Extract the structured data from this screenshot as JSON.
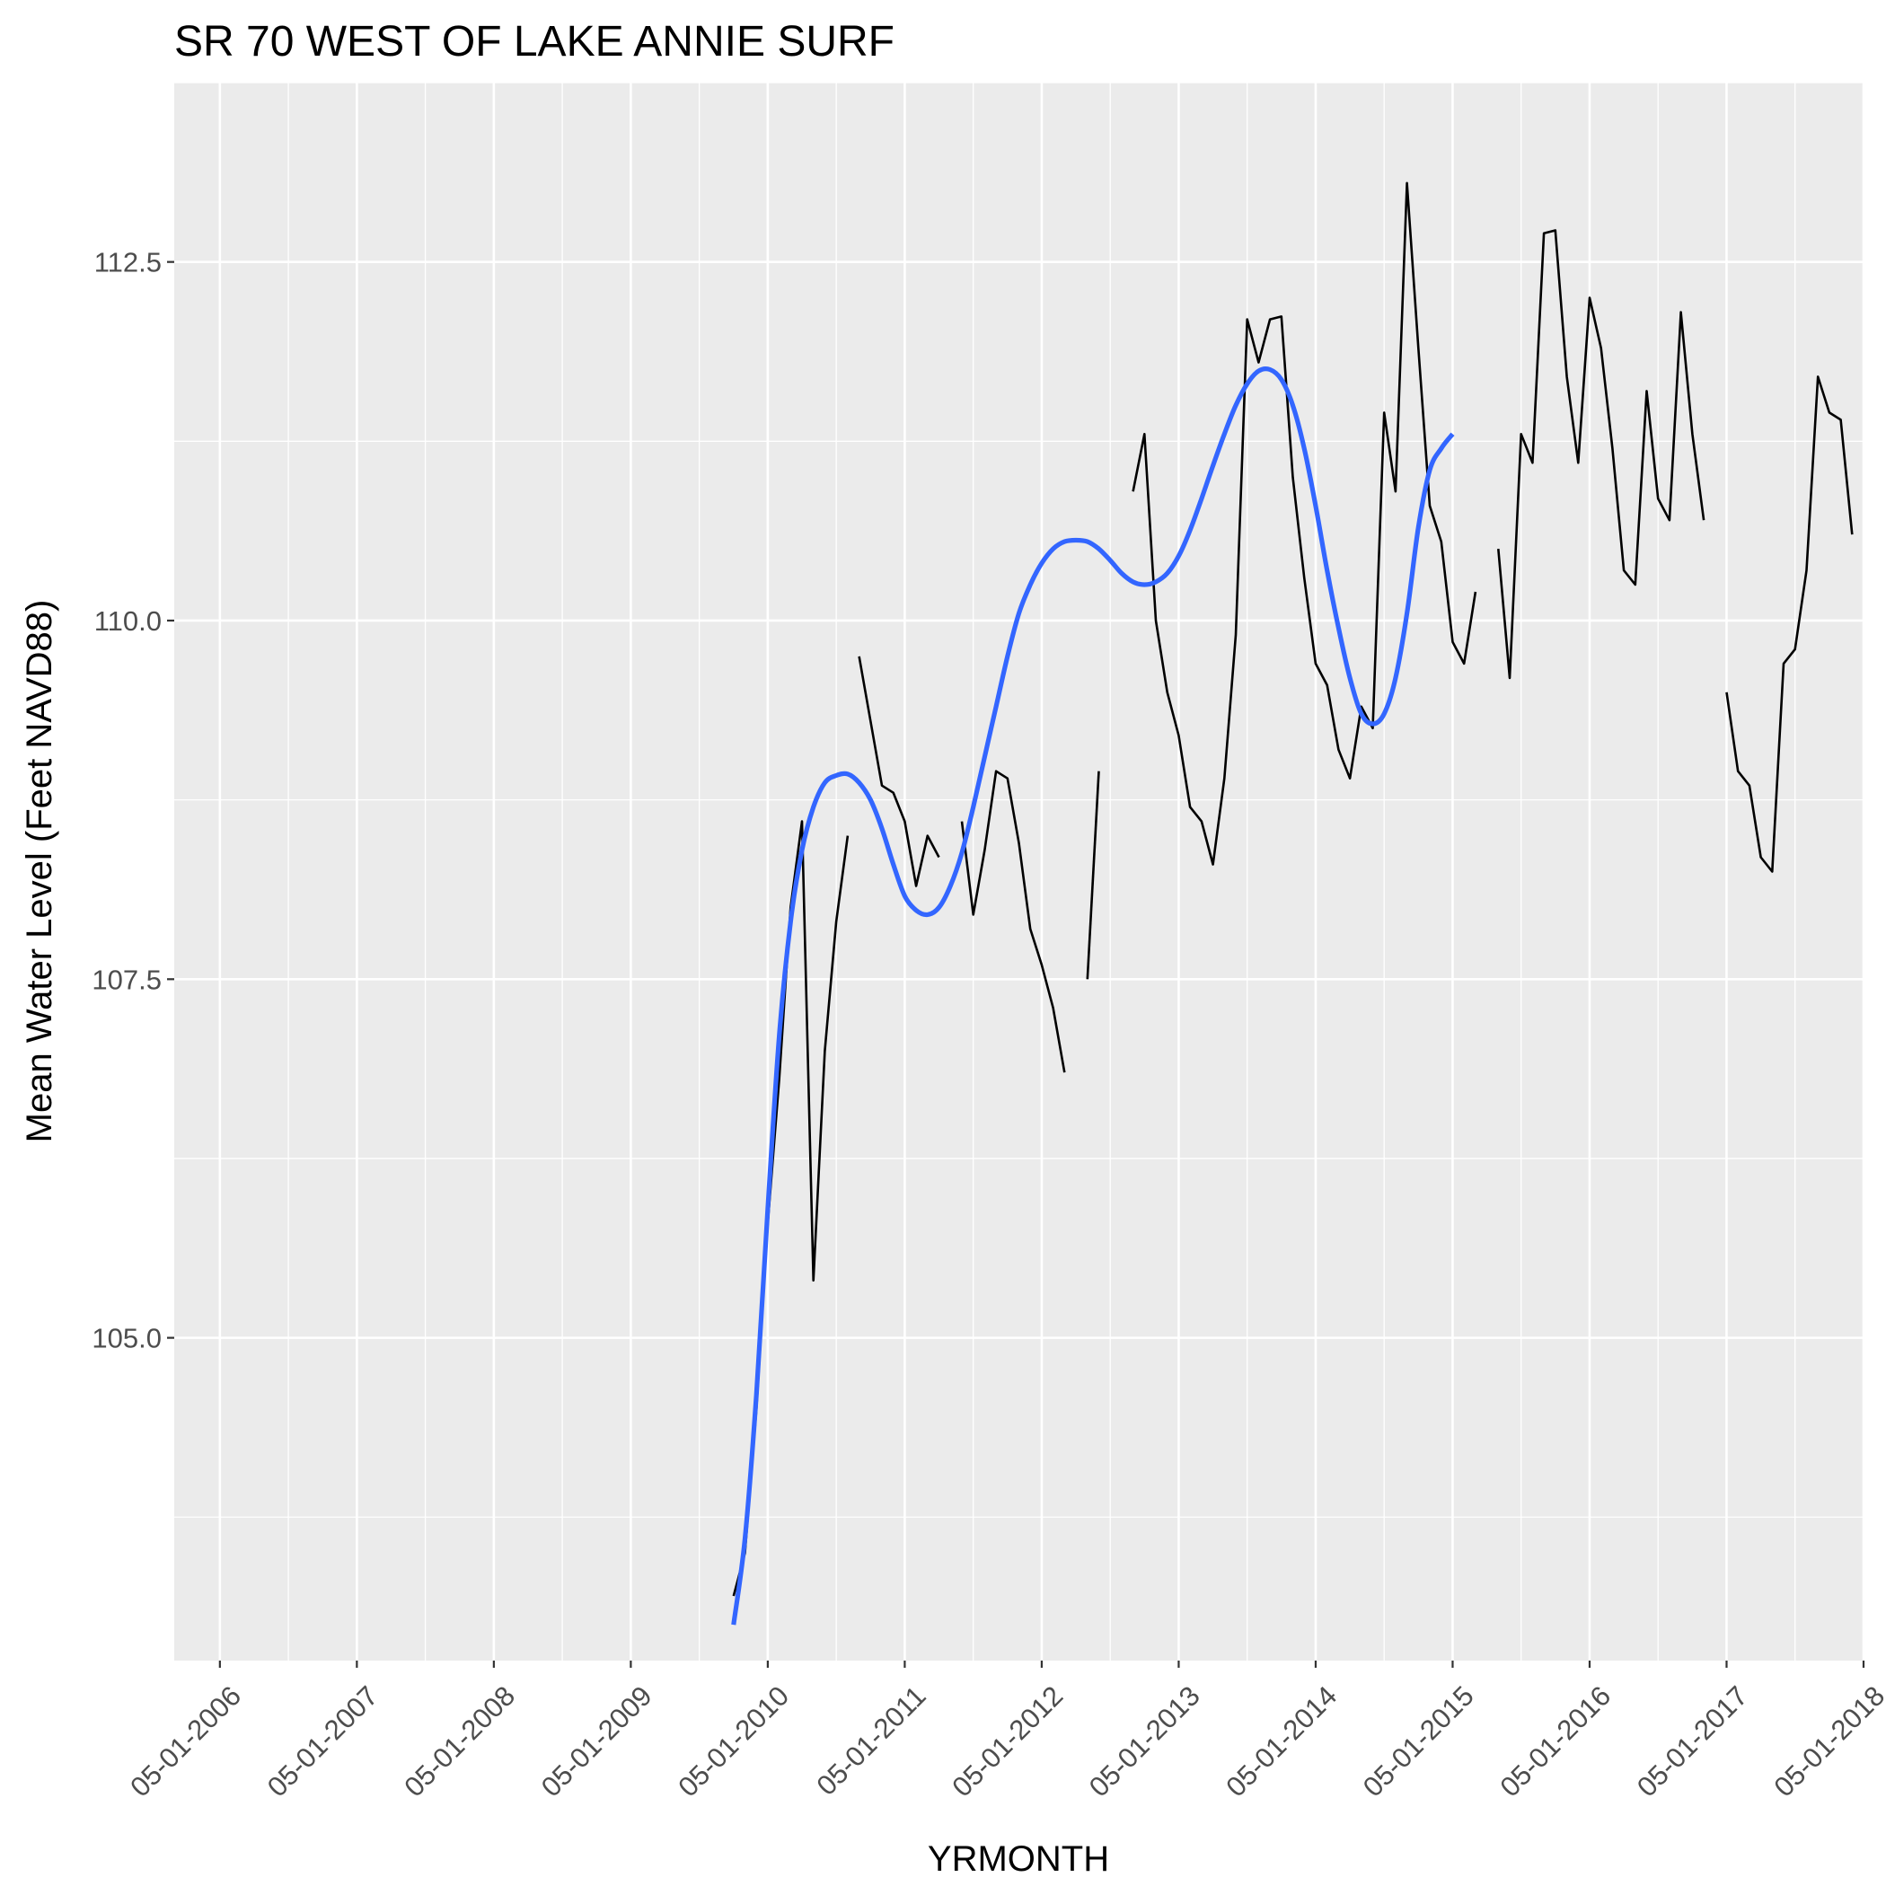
{
  "chart_data": {
    "type": "line",
    "title": "SR 70 WEST OF LAKE ANNIE SURF",
    "xlabel": "YRMONTH",
    "ylabel": "Mean Water Level (Feet NAVD88)",
    "x_tick_labels": [
      "05-01-2006",
      "05-01-2007",
      "05-01-2008",
      "05-01-2009",
      "05-01-2010",
      "05-01-2011",
      "05-01-2012",
      "05-01-2013",
      "05-01-2014",
      "05-01-2015",
      "05-01-2016",
      "05-01-2017",
      "05-01-2018"
    ],
    "y_tick_labels": [
      "105.0",
      "107.5",
      "110.0",
      "112.5"
    ],
    "y_ticks": [
      105.0,
      107.5,
      110.0,
      112.5
    ],
    "xlim": [
      "2006-01",
      "2018-05"
    ],
    "ylim": [
      102.75,
      113.75
    ],
    "grid": true,
    "legend": "none",
    "colors": {
      "panel": "#ebebeb",
      "grid": "#ffffff",
      "observed": "#000000",
      "smooth": "#3366ff",
      "tick_text": "#4d4d4d"
    },
    "series": [
      {
        "style": "observed",
        "segments": [
          [
            [
              "2010-02",
              103.2
            ],
            [
              "2010-03",
              103.5
            ],
            [
              "2010-04",
              104.5
            ],
            [
              "2010-05",
              105.8
            ],
            [
              "2010-06",
              106.8
            ],
            [
              "2010-07",
              108.0
            ],
            [
              "2010-08",
              108.6
            ],
            [
              "2010-09",
              105.4
            ],
            [
              "2010-10",
              107.0
            ],
            [
              "2010-11",
              107.9
            ],
            [
              "2010-12",
              108.5
            ]
          ],
          [
            [
              "2011-01",
              109.75
            ],
            [
              "2011-02",
              109.3
            ],
            [
              "2011-03",
              108.85
            ],
            [
              "2011-04",
              108.8
            ],
            [
              "2011-05",
              108.6
            ],
            [
              "2011-06",
              108.15
            ],
            [
              "2011-07",
              108.5
            ],
            [
              "2011-08",
              108.35
            ]
          ],
          [
            [
              "2011-10",
              108.6
            ],
            [
              "2011-11",
              107.95
            ],
            [
              "2011-12",
              108.4
            ],
            [
              "2012-01",
              108.95
            ],
            [
              "2012-02",
              108.9
            ],
            [
              "2012-03",
              108.45
            ],
            [
              "2012-04",
              107.85
            ],
            [
              "2012-05",
              107.6
            ],
            [
              "2012-06",
              107.3
            ],
            [
              "2012-07",
              106.85
            ]
          ],
          [
            [
              "2012-09",
              107.5
            ],
            [
              "2012-10",
              108.95
            ]
          ],
          [
            [
              "2013-01",
              110.9
            ],
            [
              "2013-02",
              111.3
            ],
            [
              "2013-03",
              110.0
            ],
            [
              "2013-04",
              109.5
            ],
            [
              "2013-05",
              109.2
            ],
            [
              "2013-06",
              108.7
            ],
            [
              "2013-07",
              108.6
            ],
            [
              "2013-08",
              108.3
            ],
            [
              "2013-09",
              108.9
            ],
            [
              "2013-10",
              109.9
            ],
            [
              "2013-11",
              112.1
            ],
            [
              "2013-12",
              111.8
            ],
            [
              "2014-01",
              112.1
            ],
            [
              "2014-02",
              112.12
            ],
            [
              "2014-03",
              111.0
            ],
            [
              "2014-04",
              110.3
            ],
            [
              "2014-05",
              109.7
            ],
            [
              "2014-06",
              109.55
            ],
            [
              "2014-07",
              109.1
            ],
            [
              "2014-08",
              108.9
            ],
            [
              "2014-09",
              109.4
            ],
            [
              "2014-10",
              109.25
            ],
            [
              "2014-11",
              111.45
            ],
            [
              "2014-12",
              110.9
            ],
            [
              "2015-01",
              113.05
            ],
            [
              "2015-02",
              111.9
            ],
            [
              "2015-03",
              110.8
            ],
            [
              "2015-04",
              110.55
            ],
            [
              "2015-05",
              109.85
            ],
            [
              "2015-06",
              109.7
            ],
            [
              "2015-07",
              110.2
            ]
          ],
          [
            [
              "2015-09",
              110.5
            ],
            [
              "2015-10",
              109.6
            ],
            [
              "2015-11",
              111.3
            ],
            [
              "2015-12",
              111.1
            ],
            [
              "2016-01",
              112.7
            ],
            [
              "2016-02",
              112.72
            ],
            [
              "2016-03",
              111.7
            ],
            [
              "2016-04",
              111.1
            ],
            [
              "2016-05",
              112.25
            ],
            [
              "2016-06",
              111.9
            ],
            [
              "2016-07",
              111.2
            ],
            [
              "2016-08",
              110.35
            ],
            [
              "2016-09",
              110.25
            ],
            [
              "2016-10",
              111.6
            ],
            [
              "2016-11",
              110.85
            ],
            [
              "2016-12",
              110.7
            ],
            [
              "2017-01",
              112.15
            ],
            [
              "2017-02",
              111.3
            ],
            [
              "2017-03",
              110.7
            ]
          ],
          [
            [
              "2017-05",
              109.5
            ],
            [
              "2017-06",
              108.95
            ],
            [
              "2017-07",
              108.85
            ],
            [
              "2017-08",
              108.35
            ],
            [
              "2017-09",
              108.25
            ],
            [
              "2017-10",
              109.7
            ],
            [
              "2017-11",
              109.8
            ],
            [
              "2017-12",
              110.35
            ],
            [
              "2018-01",
              111.7
            ],
            [
              "2018-02",
              111.45
            ],
            [
              "2018-03",
              111.4
            ],
            [
              "2018-04",
              110.6
            ]
          ]
        ]
      },
      {
        "style": "smooth",
        "points": [
          [
            "2010-02",
            103.0
          ],
          [
            "2010-03",
            103.6
          ],
          [
            "2010-04",
            104.6
          ],
          [
            "2010-05",
            105.9
          ],
          [
            "2010-06",
            107.1
          ],
          [
            "2010-07",
            107.9
          ],
          [
            "2010-08",
            108.4
          ],
          [
            "2010-09",
            108.7
          ],
          [
            "2010-10",
            108.87
          ],
          [
            "2010-11",
            108.92
          ],
          [
            "2010-12",
            108.93
          ],
          [
            "2011-01",
            108.87
          ],
          [
            "2011-02",
            108.75
          ],
          [
            "2011-03",
            108.55
          ],
          [
            "2011-04",
            108.3
          ],
          [
            "2011-05",
            108.08
          ],
          [
            "2011-06",
            107.98
          ],
          [
            "2011-07",
            107.95
          ],
          [
            "2011-08",
            108.0
          ],
          [
            "2011-09",
            108.15
          ],
          [
            "2011-10",
            108.38
          ],
          [
            "2011-11",
            108.7
          ],
          [
            "2011-12",
            109.05
          ],
          [
            "2012-01",
            109.4
          ],
          [
            "2012-02",
            109.75
          ],
          [
            "2012-03",
            110.05
          ],
          [
            "2012-04",
            110.25
          ],
          [
            "2012-05",
            110.4
          ],
          [
            "2012-06",
            110.5
          ],
          [
            "2012-07",
            110.55
          ],
          [
            "2012-08",
            110.56
          ],
          [
            "2012-09",
            110.55
          ],
          [
            "2012-10",
            110.5
          ],
          [
            "2012-11",
            110.42
          ],
          [
            "2012-12",
            110.33
          ],
          [
            "2013-01",
            110.27
          ],
          [
            "2013-02",
            110.25
          ],
          [
            "2013-03",
            110.27
          ],
          [
            "2013-04",
            110.33
          ],
          [
            "2013-05",
            110.45
          ],
          [
            "2013-06",
            110.63
          ],
          [
            "2013-07",
            110.85
          ],
          [
            "2013-08",
            111.08
          ],
          [
            "2013-09",
            111.3
          ],
          [
            "2013-10",
            111.5
          ],
          [
            "2013-11",
            111.65
          ],
          [
            "2013-12",
            111.74
          ],
          [
            "2014-01",
            111.75
          ],
          [
            "2014-02",
            111.68
          ],
          [
            "2014-03",
            111.5
          ],
          [
            "2014-04",
            111.2
          ],
          [
            "2014-05",
            110.8
          ],
          [
            "2014-06",
            110.35
          ],
          [
            "2014-07",
            109.95
          ],
          [
            "2014-08",
            109.6
          ],
          [
            "2014-09",
            109.35
          ],
          [
            "2014-10",
            109.28
          ],
          [
            "2014-11",
            109.35
          ],
          [
            "2014-12",
            109.6
          ],
          [
            "2015-01",
            110.05
          ],
          [
            "2015-02",
            110.65
          ],
          [
            "2015-03",
            111.05
          ],
          [
            "2015-04",
            111.2
          ],
          [
            "2015-05",
            111.3
          ]
        ]
      }
    ]
  }
}
